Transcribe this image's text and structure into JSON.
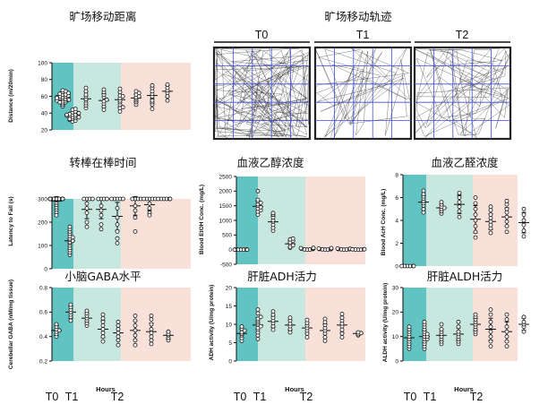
{
  "colors": {
    "t0_band": "#62c3c3",
    "t1_band": "#c8e7df",
    "t2_band": "#f9e0d8",
    "grid_line": "#3a4fd8",
    "open_field_top_bar": "#111111"
  },
  "bottom_labels": {
    "hours": "Hours",
    "t0": "T0",
    "t1": "T1",
    "t2": "T2"
  },
  "open_field": {
    "title": "旷场移动轨迹",
    "panels": [
      {
        "label": "T0",
        "track_density": 150
      },
      {
        "label": "T1",
        "track_density": 45
      },
      {
        "label": "T2",
        "track_density": 75
      }
    ]
  },
  "chart_data": [
    {
      "id": "distance",
      "type": "scatter",
      "title": "旷场移动距离",
      "ylabel": "Distance (m/20min)",
      "ylim": [
        20,
        100
      ],
      "yticks": [
        20,
        40,
        60,
        80,
        100
      ],
      "groups": [
        {
          "phase": "T0",
          "mean": 57,
          "sd": 8,
          "values": [
            48,
            50,
            52,
            53,
            54,
            55,
            55,
            56,
            57,
            57,
            58,
            58,
            59,
            60,
            60,
            61,
            62,
            62,
            63,
            64,
            65,
            66,
            67,
            55,
            53,
            56,
            59,
            58
          ]
        },
        {
          "phase": "T1",
          "mean": 37,
          "sd": 4,
          "values": [
            30,
            31,
            32,
            33,
            34,
            35,
            36,
            36,
            37,
            37,
            38,
            38,
            39,
            40,
            41,
            42,
            44,
            45,
            33,
            35,
            38,
            40
          ]
        },
        {
          "phase": "T1",
          "mean": 57,
          "sd": 8,
          "values": [
            46,
            49,
            52,
            55,
            57,
            60,
            62,
            66,
            70
          ]
        },
        {
          "phase": "T1",
          "mean": 55,
          "sd": 8,
          "values": [
            44,
            48,
            51,
            54,
            56,
            59,
            62,
            65,
            68
          ]
        },
        {
          "phase": "T1",
          "mean": 56,
          "sd": 9,
          "values": [
            42,
            46,
            50,
            53,
            55,
            58,
            61,
            65,
            69,
            47,
            60
          ]
        },
        {
          "phase": "T2",
          "mean": 58,
          "sd": 5,
          "values": [
            50,
            53,
            55,
            57,
            59,
            60,
            62,
            64,
            66
          ]
        },
        {
          "phase": "T2",
          "mean": 61,
          "sd": 9,
          "values": [
            45,
            50,
            53,
            57,
            60,
            63,
            66,
            70,
            73,
            55
          ]
        },
        {
          "phase": "T2",
          "mean": 66,
          "sd": 7,
          "values": [
            55,
            60,
            64,
            67,
            70,
            74
          ]
        }
      ]
    },
    {
      "id": "rotarod",
      "type": "scatter",
      "title": "转棒在棒时间",
      "ylabel": "Latency to Fall (s)",
      "ylim": [
        0,
        300
      ],
      "yticks": [
        0,
        100,
        200,
        300
      ],
      "groups": [
        {
          "phase": "T0",
          "mean": 290,
          "sd": 20,
          "values": [
            300,
            300,
            300,
            300,
            300,
            300,
            300,
            300,
            300,
            300,
            300,
            300,
            300,
            300,
            300,
            300,
            280,
            270,
            260,
            250,
            240,
            230
          ]
        },
        {
          "phase": "T1",
          "mean": 120,
          "sd": 35,
          "values": [
            60,
            70,
            80,
            90,
            100,
            110,
            115,
            120,
            125,
            130,
            135,
            140,
            150,
            160,
            170,
            180
          ]
        },
        {
          "phase": "T1",
          "mean": 255,
          "sd": 40,
          "values": [
            300,
            300,
            300,
            300,
            280,
            260,
            240,
            200,
            180
          ]
        },
        {
          "phase": "T1",
          "mean": 255,
          "sd": 40,
          "values": [
            300,
            300,
            300,
            300,
            270,
            250,
            230,
            190,
            170
          ]
        },
        {
          "phase": "T1",
          "mean": 225,
          "sd": 60,
          "values": [
            300,
            300,
            300,
            300,
            300,
            260,
            220,
            190,
            160,
            130,
            110
          ]
        },
        {
          "phase": "T2",
          "mean": 270,
          "sd": 40,
          "values": [
            300,
            300,
            300,
            300,
            270,
            250,
            220,
            160
          ]
        },
        {
          "phase": "T2",
          "mean": 275,
          "sd": 25,
          "values": [
            300,
            300,
            300,
            300,
            300,
            280,
            260,
            240,
            230
          ]
        },
        {
          "phase": "T2",
          "mean": 300,
          "sd": 0,
          "values": [
            300,
            300,
            300,
            300,
            300,
            300
          ]
        }
      ]
    },
    {
      "id": "blood_ethanol",
      "type": "scatter",
      "title": "血液乙醇浓度",
      "ylabel": "Blood EtOH Conc. (mg/L)",
      "ylim": [
        -500,
        2500
      ],
      "yticks": [
        -500,
        0,
        500,
        1000,
        1500,
        2000,
        2500
      ],
      "groups": [
        {
          "phase": "T0",
          "mean": 0,
          "sd": 0,
          "values": [
            0,
            0,
            0,
            0,
            0,
            0,
            0,
            0
          ]
        },
        {
          "phase": "T1",
          "mean": 1480,
          "sd": 180,
          "values": [
            1200,
            1300,
            1350,
            1400,
            1450,
            1500,
            1550,
            1600,
            1650,
            1700,
            2000
          ]
        },
        {
          "phase": "T1",
          "mean": 950,
          "sd": 200,
          "values": [
            650,
            750,
            850,
            950,
            1000,
            1100,
            1200,
            1250
          ]
        },
        {
          "phase": "T1",
          "mean": 200,
          "sd": 100,
          "values": [
            60,
            100,
            150,
            200,
            250,
            300,
            350,
            380
          ]
        },
        {
          "phase": "T2",
          "mean": 20,
          "sd": 20,
          "values": [
            0,
            5,
            10,
            20,
            30,
            40,
            50,
            60
          ]
        },
        {
          "phase": "T2",
          "mean": 15,
          "sd": 15,
          "values": [
            0,
            5,
            10,
            15,
            20,
            30,
            40,
            50
          ]
        },
        {
          "phase": "T2",
          "mean": 10,
          "sd": 10,
          "values": [
            0,
            5,
            10,
            15,
            20,
            30,
            40
          ]
        },
        {
          "phase": "T2",
          "mean": 5,
          "sd": 5,
          "values": [
            0,
            0,
            5,
            10,
            10,
            15
          ]
        }
      ]
    },
    {
      "id": "blood_acetaldehyde",
      "type": "scatter",
      "title": "血液乙醛浓度",
      "ylabel": "Blood AcH Conc. (mg/L)",
      "ylim": [
        0,
        8
      ],
      "yticks": [
        0,
        2,
        4,
        6,
        8
      ],
      "groups": [
        {
          "phase": "T0",
          "mean": 0,
          "sd": 0,
          "values": [
            0,
            0,
            0,
            0,
            0,
            0
          ]
        },
        {
          "phase": "T1",
          "mean": 5.6,
          "sd": 0.6,
          "values": [
            4.7,
            5.0,
            5.3,
            5.5,
            5.7,
            5.9,
            6.1,
            6.3,
            6.6
          ]
        },
        {
          "phase": "T1",
          "mean": 5.1,
          "sd": 0.3,
          "values": [
            4.6,
            4.8,
            5.0,
            5.1,
            5.2,
            5.4,
            5.6
          ]
        },
        {
          "phase": "T1",
          "mean": 5.4,
          "sd": 0.8,
          "values": [
            4.3,
            4.8,
            5.2,
            5.6,
            6.0,
            6.4
          ]
        },
        {
          "phase": "T1",
          "mean": 4.1,
          "sd": 1.2,
          "values": [
            2.5,
            3.0,
            3.5,
            4.0,
            4.5,
            5.0,
            5.5,
            6.0
          ]
        },
        {
          "phase": "T2",
          "mean": 3.9,
          "sd": 0.7,
          "values": [
            2.9,
            3.3,
            3.6,
            3.9,
            4.2,
            4.5,
            4.9,
            5.2
          ]
        },
        {
          "phase": "T2",
          "mean": 4.3,
          "sd": 0.8,
          "values": [
            3.0,
            3.5,
            3.9,
            4.3,
            4.7,
            5.0,
            5.4,
            5.7
          ]
        },
        {
          "phase": "T2",
          "mean": 3.8,
          "sd": 0.9,
          "values": [
            2.6,
            3.1,
            3.6,
            4.0,
            4.5,
            5.0
          ]
        }
      ]
    },
    {
      "id": "gaba",
      "type": "scatter",
      "title": "小脑GABA水平",
      "ylabel": "Cerebellar GABA (nM/mg tissue)",
      "ylim": [
        0.2,
        0.8
      ],
      "yticks": [
        0.2,
        0.4,
        0.6,
        0.8
      ],
      "groups": [
        {
          "phase": "T0",
          "mean": 0.45,
          "sd": 0.04,
          "values": [
            0.4,
            0.42,
            0.44,
            0.45,
            0.46,
            0.48,
            0.5
          ]
        },
        {
          "phase": "T1",
          "mean": 0.6,
          "sd": 0.05,
          "values": [
            0.53,
            0.56,
            0.58,
            0.6,
            0.62,
            0.64,
            0.66
          ]
        },
        {
          "phase": "T1",
          "mean": 0.55,
          "sd": 0.04,
          "values": [
            0.49,
            0.51,
            0.53,
            0.55,
            0.57,
            0.59,
            0.61
          ]
        },
        {
          "phase": "T1",
          "mean": 0.46,
          "sd": 0.07,
          "values": [
            0.36,
            0.4,
            0.43,
            0.46,
            0.49,
            0.52,
            0.55,
            0.58
          ]
        },
        {
          "phase": "T1",
          "mean": 0.43,
          "sd": 0.06,
          "values": [
            0.33,
            0.37,
            0.4,
            0.43,
            0.46,
            0.49,
            0.52
          ]
        },
        {
          "phase": "T2",
          "mean": 0.45,
          "sd": 0.08,
          "values": [
            0.33,
            0.37,
            0.41,
            0.45,
            0.49,
            0.53,
            0.57
          ]
        },
        {
          "phase": "T2",
          "mean": 0.44,
          "sd": 0.07,
          "values": [
            0.34,
            0.37,
            0.4,
            0.43,
            0.46,
            0.5,
            0.54,
            0.57
          ]
        },
        {
          "phase": "T2",
          "mean": 0.41,
          "sd": 0.03,
          "values": [
            0.37,
            0.39,
            0.41,
            0.42,
            0.44
          ]
        }
      ]
    },
    {
      "id": "liver_adh",
      "type": "scatter",
      "title": "肝脏ADH活力",
      "ylabel": "ADH activity (U/mg protein)",
      "ylim": [
        0,
        20
      ],
      "yticks": [
        0,
        5,
        10,
        15,
        20
      ],
      "groups": [
        {
          "phase": "T0",
          "mean": 7.5,
          "sd": 1.2,
          "values": [
            5.5,
            6.3,
            7.0,
            7.4,
            7.8,
            8.3,
            8.8,
            9.4
          ]
        },
        {
          "phase": "T1",
          "mean": 9.8,
          "sd": 2.0,
          "values": [
            6.0,
            7.0,
            7.8,
            8.5,
            9.0,
            9.5,
            10.0,
            10.5,
            11.0,
            11.5,
            12.0,
            13.0,
            14.0
          ]
        },
        {
          "phase": "T1",
          "mean": 10.8,
          "sd": 1.6,
          "values": [
            8.5,
            9.5,
            10.3,
            11.0,
            11.8,
            12.6,
            13.5
          ]
        },
        {
          "phase": "T1",
          "mean": 9.8,
          "sd": 1.4,
          "values": [
            7.8,
            8.7,
            9.5,
            10.2,
            11.0,
            11.8
          ]
        },
        {
          "phase": "T2",
          "mean": 9.0,
          "sd": 1.5,
          "values": [
            6.5,
            7.5,
            8.3,
            9.0,
            9.7,
            10.4,
            11.2
          ]
        },
        {
          "phase": "T2",
          "mean": 8.3,
          "sd": 1.8,
          "values": [
            5.5,
            6.5,
            7.5,
            8.3,
            9.0,
            9.8,
            10.6,
            11.5
          ]
        },
        {
          "phase": "T2",
          "mean": 9.8,
          "sd": 2.0,
          "values": [
            6.5,
            7.5,
            8.5,
            9.5,
            10.2,
            11.0,
            11.8,
            12.8
          ]
        },
        {
          "phase": "T2",
          "mean": 7.5,
          "sd": 0.5,
          "values": [
            7.0,
            7.3,
            7.6,
            7.8
          ]
        }
      ]
    },
    {
      "id": "liver_aldh",
      "type": "scatter",
      "title": "肝脏ALDH活力",
      "ylabel": "ALDH activity (U/mg protein)",
      "ylim": [
        0,
        30
      ],
      "yticks": [
        0,
        10,
        20,
        30
      ],
      "groups": [
        {
          "phase": "T0",
          "mean": 9.5,
          "sd": 2.5,
          "values": [
            5,
            6,
            7,
            8,
            9,
            10,
            11,
            12,
            13,
            14
          ]
        },
        {
          "phase": "T1",
          "mean": 10,
          "sd": 2.5,
          "values": [
            5,
            6,
            7,
            8,
            9,
            9,
            10,
            10,
            11,
            11,
            12,
            13,
            14,
            15,
            16
          ]
        },
        {
          "phase": "T1",
          "mean": 10.5,
          "sd": 2.5,
          "values": [
            7,
            8,
            9,
            10,
            11,
            12,
            13,
            15
          ]
        },
        {
          "phase": "T1",
          "mean": 11,
          "sd": 2.5,
          "values": [
            7,
            8,
            9,
            10,
            11,
            12,
            14,
            16
          ]
        },
        {
          "phase": "T2",
          "mean": 15,
          "sd": 2.5,
          "values": [
            11,
            12,
            13,
            14,
            15,
            16,
            17,
            18,
            19
          ]
        },
        {
          "phase": "T2",
          "mean": 13,
          "sd": 4.5,
          "values": [
            6,
            8,
            10,
            12,
            14,
            16,
            19,
            21
          ]
        },
        {
          "phase": "T2",
          "mean": 12,
          "sd": 4.0,
          "values": [
            6,
            8,
            10,
            12,
            14,
            17,
            19
          ]
        },
        {
          "phase": "T2",
          "mean": 15,
          "sd": 2.5,
          "values": [
            12,
            14,
            15,
            16,
            18
          ]
        }
      ]
    }
  ]
}
